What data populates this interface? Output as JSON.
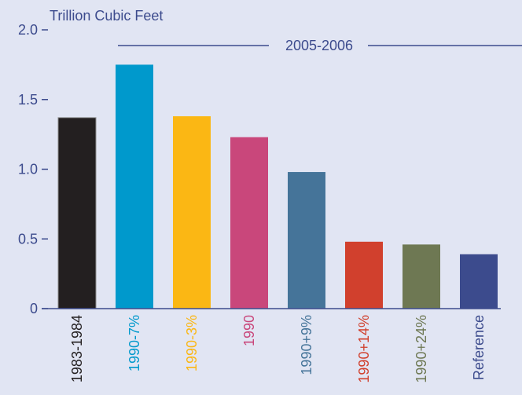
{
  "chart_data": {
    "type": "bar",
    "unit_label": "Trillion Cubic Feet",
    "bracket_label": "2005-2006",
    "categories": [
      "1983-1984",
      "1990-7%",
      "1990-3%",
      "1990",
      "1990+9%",
      "1990+14%",
      "1990+24%",
      "Reference"
    ],
    "values": [
      1.37,
      1.75,
      1.38,
      1.23,
      0.98,
      0.48,
      0.46,
      0.39
    ],
    "colors": [
      "#231f20",
      "#0099cc",
      "#fbb714",
      "#c9477b",
      "#457499",
      "#d1402d",
      "#6e7853",
      "#3c4b8d"
    ],
    "label_colors": [
      "#231f20",
      "#0099cc",
      "#fbb714",
      "#c9477b",
      "#457499",
      "#d1402d",
      "#6e7853",
      "#3c4b8d"
    ],
    "y_ticks": [
      {
        "value": 0,
        "label": "0"
      },
      {
        "value": 0.5,
        "label": "0.5"
      },
      {
        "value": 1.0,
        "label": "1.0"
      },
      {
        "value": 1.5,
        "label": "1.5"
      },
      {
        "value": 2.0,
        "label": "2.0"
      }
    ],
    "ylim": [
      0,
      2.0
    ],
    "grid": false,
    "axis_color": "#3c4b8d",
    "text_color": "#3c4b8d"
  }
}
